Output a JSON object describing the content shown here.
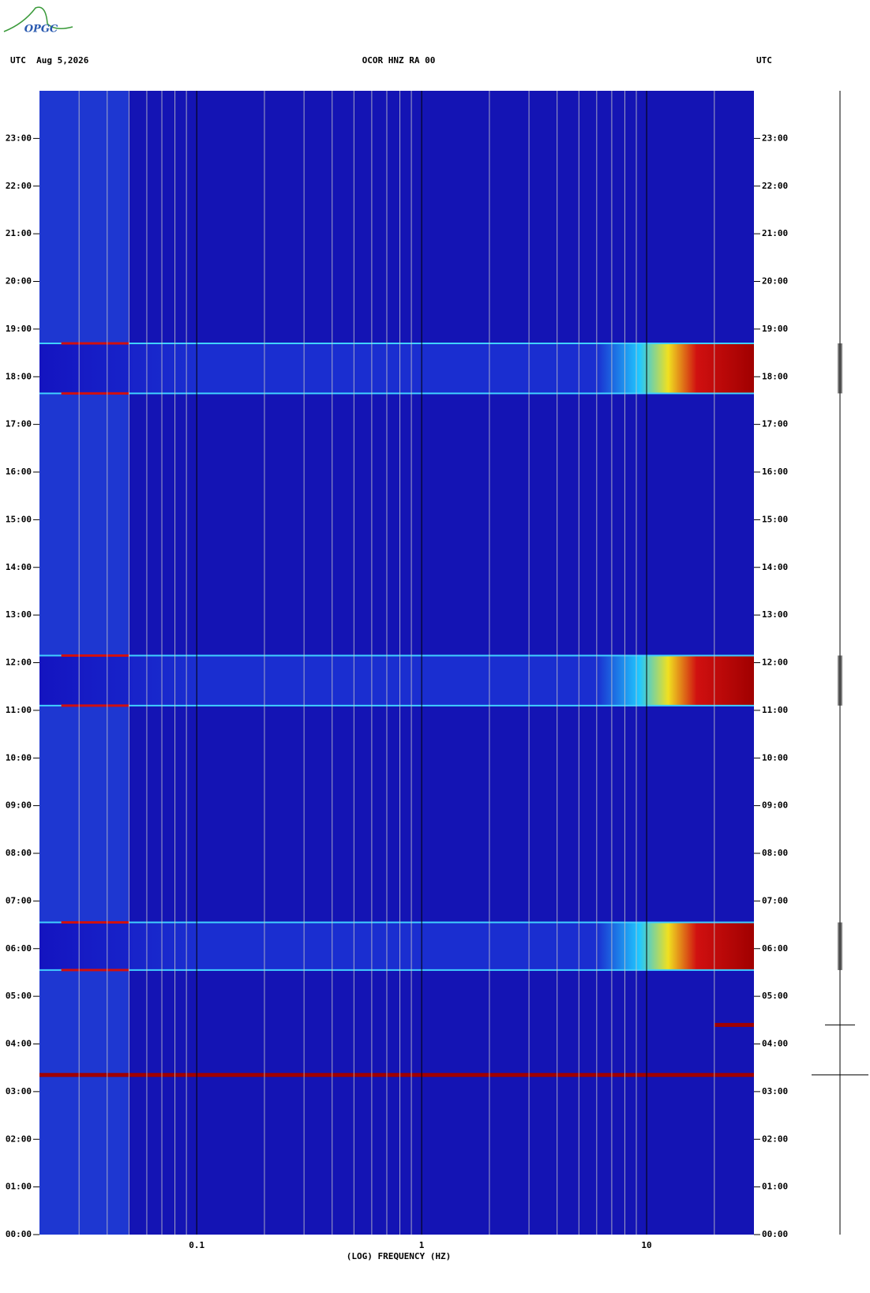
{
  "logo": "OPGC",
  "chart_data": {
    "type": "spectrogram",
    "title": "OCOR HNZ RA 00",
    "date_label": "UTC  Aug 5,2026",
    "right_label": "UTC",
    "x_label": "(LOG) FREQUENCY (HZ)",
    "x_log": true,
    "xlim": [
      0.02,
      30
    ],
    "xticks": [
      0.1,
      1,
      10
    ],
    "xgrid": [
      0.03,
      0.04,
      0.05,
      0.06,
      0.07,
      0.08,
      0.09,
      0.2,
      0.3,
      0.4,
      0.5,
      0.6,
      0.7,
      0.8,
      0.9,
      2,
      3,
      4,
      5,
      6,
      7,
      8,
      9,
      20
    ],
    "ylim": [
      0,
      24
    ],
    "yticks": [
      {
        "value": 0,
        "label": "00:00"
      },
      {
        "value": 1,
        "label": "01:00"
      },
      {
        "value": 2,
        "label": "02:00"
      },
      {
        "value": 3,
        "label": "03:00"
      },
      {
        "value": 4,
        "label": "04:00"
      },
      {
        "value": 5,
        "label": "05:00"
      },
      {
        "value": 6,
        "label": "06:00"
      },
      {
        "value": 7,
        "label": "07:00"
      },
      {
        "value": 8,
        "label": "08:00"
      },
      {
        "value": 9,
        "label": "09:00"
      },
      {
        "value": 10,
        "label": "10:00"
      },
      {
        "value": 11,
        "label": "11:00"
      },
      {
        "value": 12,
        "label": "12:00"
      },
      {
        "value": 13,
        "label": "13:00"
      },
      {
        "value": 14,
        "label": "14:00"
      },
      {
        "value": 15,
        "label": "15:00"
      },
      {
        "value": 16,
        "label": "16:00"
      },
      {
        "value": 17,
        "label": "17:00"
      },
      {
        "value": 18,
        "label": "18:00"
      },
      {
        "value": 19,
        "label": "19:00"
      },
      {
        "value": 20,
        "label": "20:00"
      },
      {
        "value": 21,
        "label": "21:00"
      },
      {
        "value": 22,
        "label": "22:00"
      },
      {
        "value": 23,
        "label": "23:00"
      }
    ],
    "events": [
      {
        "start": 17.65,
        "end": 18.7
      },
      {
        "start": 11.1,
        "end": 12.15
      },
      {
        "start": 5.55,
        "end": 6.55
      }
    ],
    "lines": [
      3.35,
      4.4
    ]
  }
}
